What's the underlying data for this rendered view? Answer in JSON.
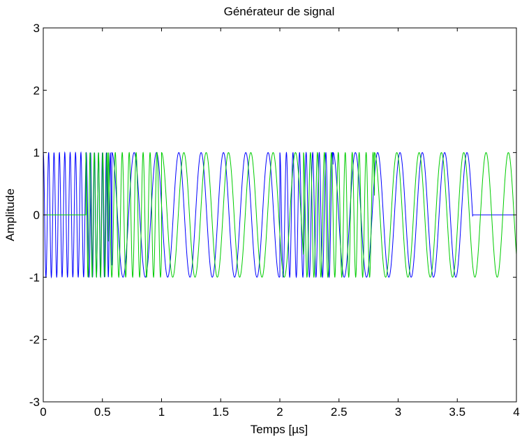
{
  "chart_data": {
    "type": "line",
    "title": "Générateur de signal",
    "xlabel": "Temps [µs]",
    "ylabel": "Amplitude",
    "xlim": [
      0,
      4
    ],
    "ylim": [
      -3,
      3
    ],
    "xticks": [
      0,
      0.5,
      1,
      1.5,
      2,
      2.5,
      3,
      3.5,
      4
    ],
    "xtick_labels": [
      "0",
      "0.5",
      "1",
      "1.5",
      "2",
      "2.5",
      "3",
      "3.5",
      "4"
    ],
    "yticks": [
      -3,
      -2,
      -1,
      0,
      1,
      2,
      3
    ],
    "ytick_labels": [
      "-3",
      "-2",
      "-1",
      "0",
      "1",
      "2",
      "3"
    ],
    "grid": false,
    "legend": "none",
    "series": [
      {
        "color": "#0000ff",
        "description": "cosine burst segments, frequency in MHz per time interval in µs",
        "segments": [
          {
            "t0": 0.0,
            "t1": 0.4,
            "freq_mhz": 22
          },
          {
            "t0": 0.4,
            "t1": 0.58,
            "freq_mhz": 30
          },
          {
            "t0": 0.58,
            "t1": 2.0,
            "freq_mhz": 5.3
          },
          {
            "t0": 2.0,
            "t1": 2.45,
            "freq_mhz": 18
          },
          {
            "t0": 2.45,
            "t1": 3.63,
            "freq_mhz": 5.3
          },
          {
            "t0": 3.63,
            "t1": 4.0,
            "freq_mhz": 0,
            "amplitude": 0
          }
        ]
      },
      {
        "color": "#00cc00",
        "description": "cosine burst segments, frequency in MHz per time interval in µs",
        "segments": [
          {
            "t0": 0.0,
            "t1": 0.36,
            "freq_mhz": 0,
            "amplitude": 0
          },
          {
            "t0": 0.36,
            "t1": 0.55,
            "freq_mhz": 28
          },
          {
            "t0": 0.55,
            "t1": 1.0,
            "freq_mhz": 17
          },
          {
            "t0": 1.0,
            "t1": 2.2,
            "freq_mhz": 5.3
          },
          {
            "t0": 2.2,
            "t1": 2.8,
            "freq_mhz": 17
          },
          {
            "t0": 2.8,
            "t1": 4.0,
            "freq_mhz": 5.3
          }
        ]
      }
    ]
  }
}
